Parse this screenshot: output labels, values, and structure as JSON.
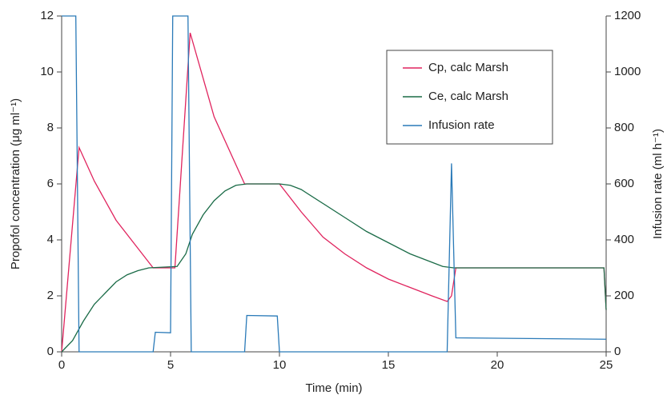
{
  "chart_data": {
    "type": "line",
    "xlabel": "Time (min)",
    "ylabel": "Propofol concentration (μg ml⁻¹)",
    "y2label": "Infusion rate (ml h⁻¹)",
    "xlim": [
      0,
      25
    ],
    "xticks": [
      0,
      5,
      10,
      15,
      20,
      25
    ],
    "ylim": [
      0,
      12
    ],
    "yticks": [
      0,
      2,
      4,
      6,
      8,
      10,
      12
    ],
    "y2lim": [
      0,
      1200
    ],
    "y2ticks": [
      0,
      200,
      400,
      600,
      800,
      1000,
      1200
    ],
    "legend": "upper right",
    "series": [
      {
        "name": "Cp, calc Marsh",
        "color": "#e0245e",
        "x": [
          0,
          0.8,
          1.5,
          2.5,
          3.5,
          4.2,
          5.2,
          5.9,
          7,
          8.4,
          10,
          11,
          12,
          13,
          14,
          15,
          16,
          17,
          17.7,
          17.9,
          18.1,
          24.9,
          25
        ],
        "values": [
          0,
          7.3,
          6.1,
          4.7,
          3.7,
          3.0,
          3.0,
          11.4,
          8.4,
          6.0,
          6.0,
          5.0,
          4.1,
          3.5,
          3.0,
          2.6,
          2.3,
          2.0,
          1.8,
          2.0,
          3.0,
          3.0,
          1.5
        ]
      },
      {
        "name": "Ce, calc Marsh",
        "color": "#1a6b47",
        "x": [
          0,
          0.5,
          1,
          1.5,
          2,
          2.5,
          3,
          3.5,
          4,
          5.3,
          5.7,
          6,
          6.5,
          7,
          7.5,
          8,
          8.5,
          10,
          10.5,
          11,
          12,
          13,
          14,
          15,
          16,
          17,
          17.5,
          18,
          24.9,
          25
        ],
        "values": [
          0,
          0.4,
          1.1,
          1.7,
          2.1,
          2.5,
          2.75,
          2.9,
          3.0,
          3.05,
          3.5,
          4.2,
          4.9,
          5.4,
          5.75,
          5.95,
          6.0,
          6.0,
          5.95,
          5.8,
          5.3,
          4.8,
          4.3,
          3.9,
          3.5,
          3.2,
          3.05,
          3.0,
          3.0,
          1.5
        ]
      },
      {
        "name": "Infusion rate",
        "color": "#2a7ab8",
        "axis": "y2",
        "x": [
          0,
          0.65,
          0.8,
          4.2,
          4.3,
          5.0,
          5.1,
          5.8,
          5.95,
          8.4,
          8.5,
          9.9,
          10.0,
          17.7,
          17.9,
          18.1,
          25
        ],
        "values": [
          1200,
          1200,
          0,
          0,
          70,
          68,
          1200,
          1200,
          0,
          0,
          130,
          128,
          0,
          0,
          673,
          50,
          45
        ]
      }
    ]
  }
}
